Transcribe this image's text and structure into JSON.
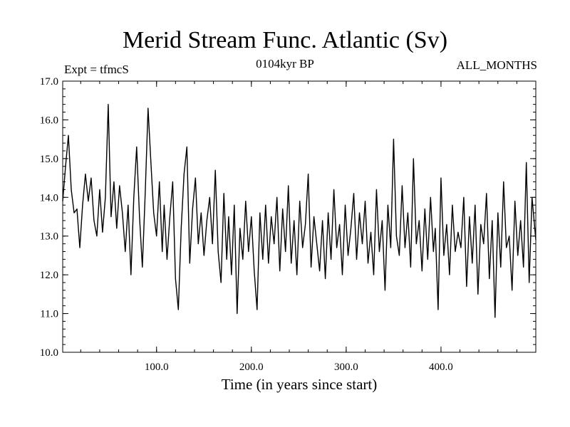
{
  "chart_data": {
    "type": "line",
    "title": "Merid Stream Func. Atlantic (Sv)",
    "annotation_left": "Expt = tfmcS",
    "subtitle": "0104kyr BP",
    "annotation_right": "ALL_MONTHS",
    "xlabel": "Time (in years since start)",
    "ylabel": "",
    "xlim": [
      1,
      500
    ],
    "ylim": [
      10.0,
      17.0
    ],
    "x_ticks": [
      100.0,
      200.0,
      300.0,
      400.0
    ],
    "x_tick_labels": [
      "100.0",
      "200.0",
      "300.0",
      "400.0"
    ],
    "y_ticks": [
      10.0,
      11.0,
      12.0,
      13.0,
      14.0,
      15.0,
      16.0,
      17.0
    ],
    "y_tick_labels": [
      "10.0",
      "11.0",
      "12.0",
      "13.0",
      "14.0",
      "15.0",
      "16.0",
      "17.0"
    ],
    "grid": false,
    "line_color": "#000000",
    "series": [
      {
        "x": [
          1,
          4,
          7,
          10,
          13,
          16,
          19,
          22,
          25,
          28,
          31,
          34,
          37,
          40,
          43,
          46,
          49,
          52,
          55,
          58,
          61,
          64,
          67,
          70,
          73,
          76,
          79,
          82,
          85,
          88,
          91,
          94,
          97,
          100,
          103,
          106,
          108,
          111,
          114,
          117,
          120,
          123,
          126,
          129,
          132,
          135,
          138,
          141,
          144,
          147,
          150,
          153,
          156,
          159,
          162,
          165,
          168,
          171,
          174,
          176,
          179,
          182,
          185,
          188,
          191,
          194,
          197,
          200,
          203,
          206,
          209,
          212,
          215,
          218,
          221,
          224,
          227,
          230,
          233,
          236,
          239,
          242,
          245,
          248,
          251,
          254,
          257,
          260,
          263,
          266,
          269,
          272,
          275,
          278,
          281,
          284,
          287,
          290,
          293,
          296,
          299,
          302,
          305,
          308,
          311,
          314,
          317,
          320,
          323,
          326,
          329,
          332,
          335,
          338,
          341,
          344,
          347,
          350,
          353,
          356,
          359,
          362,
          365,
          368,
          371,
          374,
          377,
          380,
          383,
          386,
          389,
          392,
          394,
          397,
          400,
          403,
          406,
          409,
          412,
          415,
          418,
          421,
          424,
          427,
          430,
          433,
          436,
          439,
          442,
          445,
          448,
          451,
          454,
          457,
          460,
          463,
          466,
          469,
          472,
          475,
          478,
          481,
          484,
          487,
          490,
          493,
          496,
          500
        ],
        "y": [
          13.9,
          14.8,
          15.6,
          14.2,
          13.6,
          13.7,
          12.7,
          13.8,
          14.6,
          13.9,
          14.5,
          13.4,
          13.0,
          14.2,
          13.1,
          14.0,
          16.4,
          13.5,
          14.4,
          13.2,
          14.3,
          13.6,
          12.6,
          13.8,
          12.0,
          14.0,
          15.3,
          13.5,
          12.2,
          14.1,
          16.3,
          14.9,
          13.6,
          13.0,
          14.4,
          12.6,
          13.8,
          12.4,
          13.5,
          14.4,
          11.9,
          11.1,
          13.2,
          14.6,
          15.3,
          12.3,
          13.7,
          14.5,
          12.8,
          13.6,
          12.5,
          13.4,
          14.0,
          12.8,
          14.7,
          12.6,
          11.8,
          14.1,
          12.4,
          13.5,
          12.0,
          13.8,
          11.0,
          13.2,
          12.4,
          13.9,
          12.6,
          13.5,
          12.1,
          11.1,
          13.6,
          12.4,
          13.8,
          12.3,
          13.5,
          12.8,
          14.0,
          12.1,
          13.7,
          12.6,
          14.3,
          12.3,
          13.4,
          12.0,
          13.9,
          12.7,
          13.3,
          14.6,
          12.2,
          13.5,
          12.8,
          12.1,
          13.4,
          11.9,
          13.6,
          12.4,
          14.2,
          12.7,
          13.3,
          12.0,
          13.8,
          12.5,
          13.2,
          14.1,
          12.4,
          13.6,
          12.8,
          13.9,
          12.3,
          13.1,
          12.0,
          14.2,
          12.6,
          13.4,
          11.6,
          13.8,
          12.7,
          15.5,
          13.0,
          12.5,
          14.3,
          12.7,
          13.6,
          12.2,
          15.0,
          12.8,
          13.4,
          12.1,
          13.7,
          12.4,
          14.0,
          12.6,
          13.2,
          11.1,
          14.5,
          12.5,
          13.3,
          12.0,
          13.8,
          12.6,
          13.1,
          12.7,
          14.0,
          11.7,
          13.5,
          12.3,
          13.8,
          11.5,
          13.3,
          12.8,
          14.1,
          11.9,
          13.4,
          10.9,
          13.6,
          12.2,
          14.4,
          12.7,
          13.0,
          11.6,
          13.9,
          12.5,
          13.4,
          12.2,
          14.9,
          11.8,
          14.0,
          12.9
        ]
      }
    ]
  }
}
